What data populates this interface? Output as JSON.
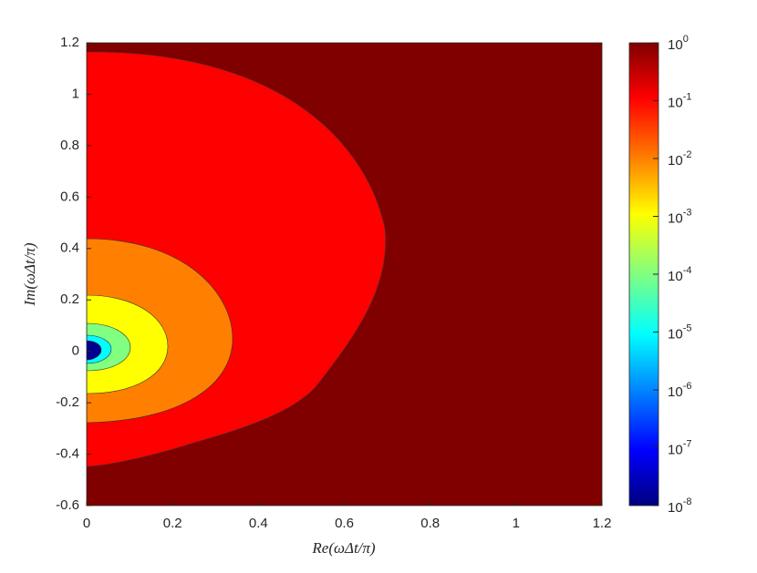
{
  "chart_data": {
    "type": "contour",
    "x_label": "Re(ωΔt/π)",
    "y_label": "Im(ωΔt/π)",
    "xlim": [
      0,
      1.2
    ],
    "ylim": [
      -0.6,
      1.2
    ],
    "xticks": [
      0,
      0.2,
      0.4,
      0.6,
      0.8,
      1,
      1.2
    ],
    "yticks": [
      -0.6,
      -0.4,
      -0.2,
      0,
      0.2,
      0.4,
      0.6,
      0.8,
      1,
      1.2
    ],
    "levels": [
      {
        "level": 1,
        "color": "#800000"
      },
      {
        "level": 0.1,
        "color": "#ff0000"
      },
      {
        "level": 0.01,
        "color": "#ff8000"
      },
      {
        "level": 0.001,
        "color": "#ffff00"
      },
      {
        "level": 0.0001,
        "color": "#80ff80"
      },
      {
        "level": 1e-05,
        "color": "#00ffff"
      },
      {
        "level": 1e-07,
        "color": "#000090"
      }
    ],
    "colorbar": {
      "scale": "log",
      "clim": [
        1e-08,
        1
      ],
      "ticks": [
        {
          "value": 1,
          "base": "10",
          "exponent": "0"
        },
        {
          "value": 0.1,
          "base": "10",
          "exponent": "-1"
        },
        {
          "value": 0.01,
          "base": "10",
          "exponent": "-2"
        },
        {
          "value": 0.001,
          "base": "10",
          "exponent": "-3"
        },
        {
          "value": 0.0001,
          "base": "10",
          "exponent": "-4"
        },
        {
          "value": 1e-05,
          "base": "10",
          "exponent": "-5"
        },
        {
          "value": 1e-06,
          "base": "10",
          "exponent": "-6"
        },
        {
          "value": 1e-07,
          "base": "10",
          "exponent": "-7"
        },
        {
          "value": 1e-08,
          "base": "10",
          "exponent": "-8"
        }
      ]
    }
  }
}
